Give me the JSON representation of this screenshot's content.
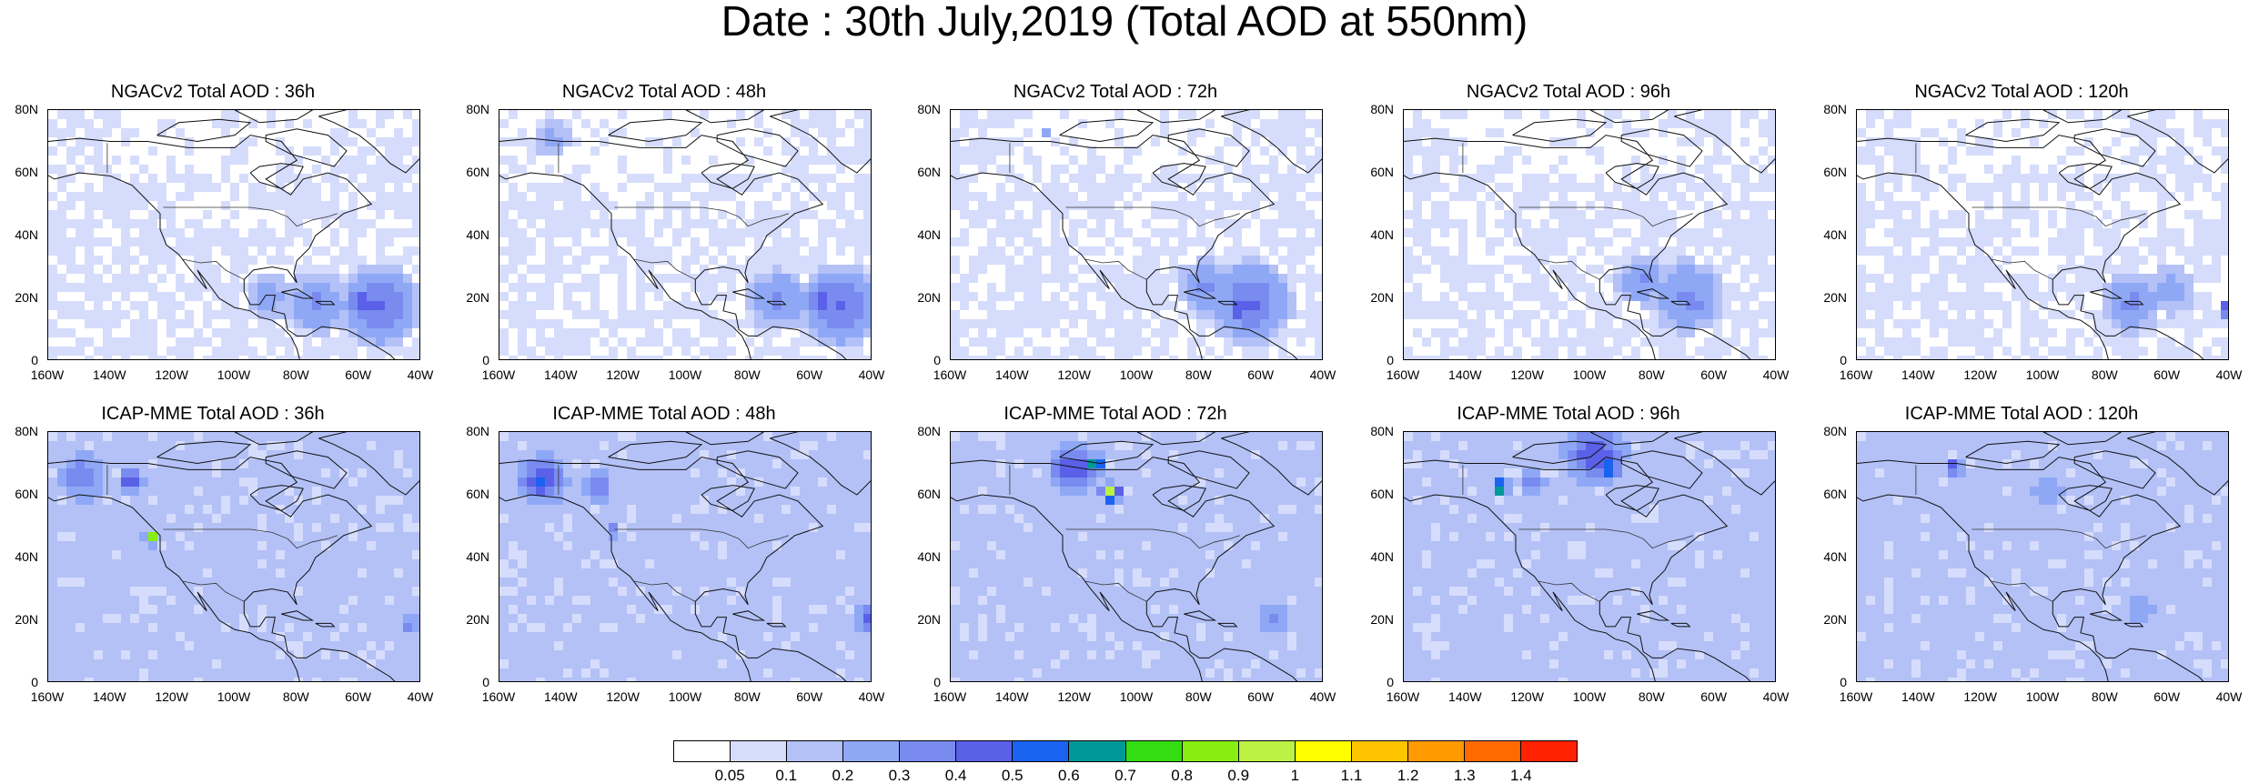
{
  "title": "Date : 30th July,2019 (Total AOD at 550nm)",
  "rows": [
    {
      "model": "NGACv2",
      "panels": [
        {
          "title": "NGACv2 Total AOD : 36h",
          "hour": 36
        },
        {
          "title": "NGACv2 Total AOD : 48h",
          "hour": 48
        },
        {
          "title": "NGACv2 Total AOD : 72h",
          "hour": 72
        },
        {
          "title": "NGACv2 Total AOD : 96h",
          "hour": 96
        },
        {
          "title": "NGACv2 Total AOD : 120h",
          "hour": 120
        }
      ]
    },
    {
      "model": "ICAP-MME",
      "panels": [
        {
          "title": "ICAP-MME Total AOD : 36h",
          "hour": 36
        },
        {
          "title": "ICAP-MME Total AOD : 48h",
          "hour": 48
        },
        {
          "title": "ICAP-MME Total AOD : 72h",
          "hour": 72
        },
        {
          "title": "ICAP-MME Total AOD : 96h",
          "hour": 96
        },
        {
          "title": "ICAP-MME Total AOD : 120h",
          "hour": 120
        }
      ]
    }
  ],
  "map": {
    "lat_ticks": [
      "80N",
      "60N",
      "40N",
      "20N",
      "0"
    ],
    "lon_ticks": [
      "160W",
      "140W",
      "120W",
      "100W",
      "80W",
      "60W",
      "40W"
    ],
    "lat_range": [
      0,
      80
    ],
    "lon_range": [
      -160,
      -40
    ]
  },
  "colorbar": {
    "labels": [
      "0.05",
      "0.1",
      "0.2",
      "0.3",
      "0.4",
      "0.5",
      "0.6",
      "0.7",
      "0.8",
      "0.9",
      "1",
      "1.1",
      "1.2",
      "1.3",
      "1.4"
    ],
    "colors": [
      "#ffffff",
      "#d6dcfb",
      "#b3c1f7",
      "#8fa8f6",
      "#7a8bf0",
      "#5a60e8",
      "#1a63f0",
      "#009999",
      "#33dd11",
      "#88ee11",
      "#bbf244",
      "#ffff00",
      "#ffc400",
      "#ff9a00",
      "#ff6a00",
      "#ff2200"
    ]
  }
}
